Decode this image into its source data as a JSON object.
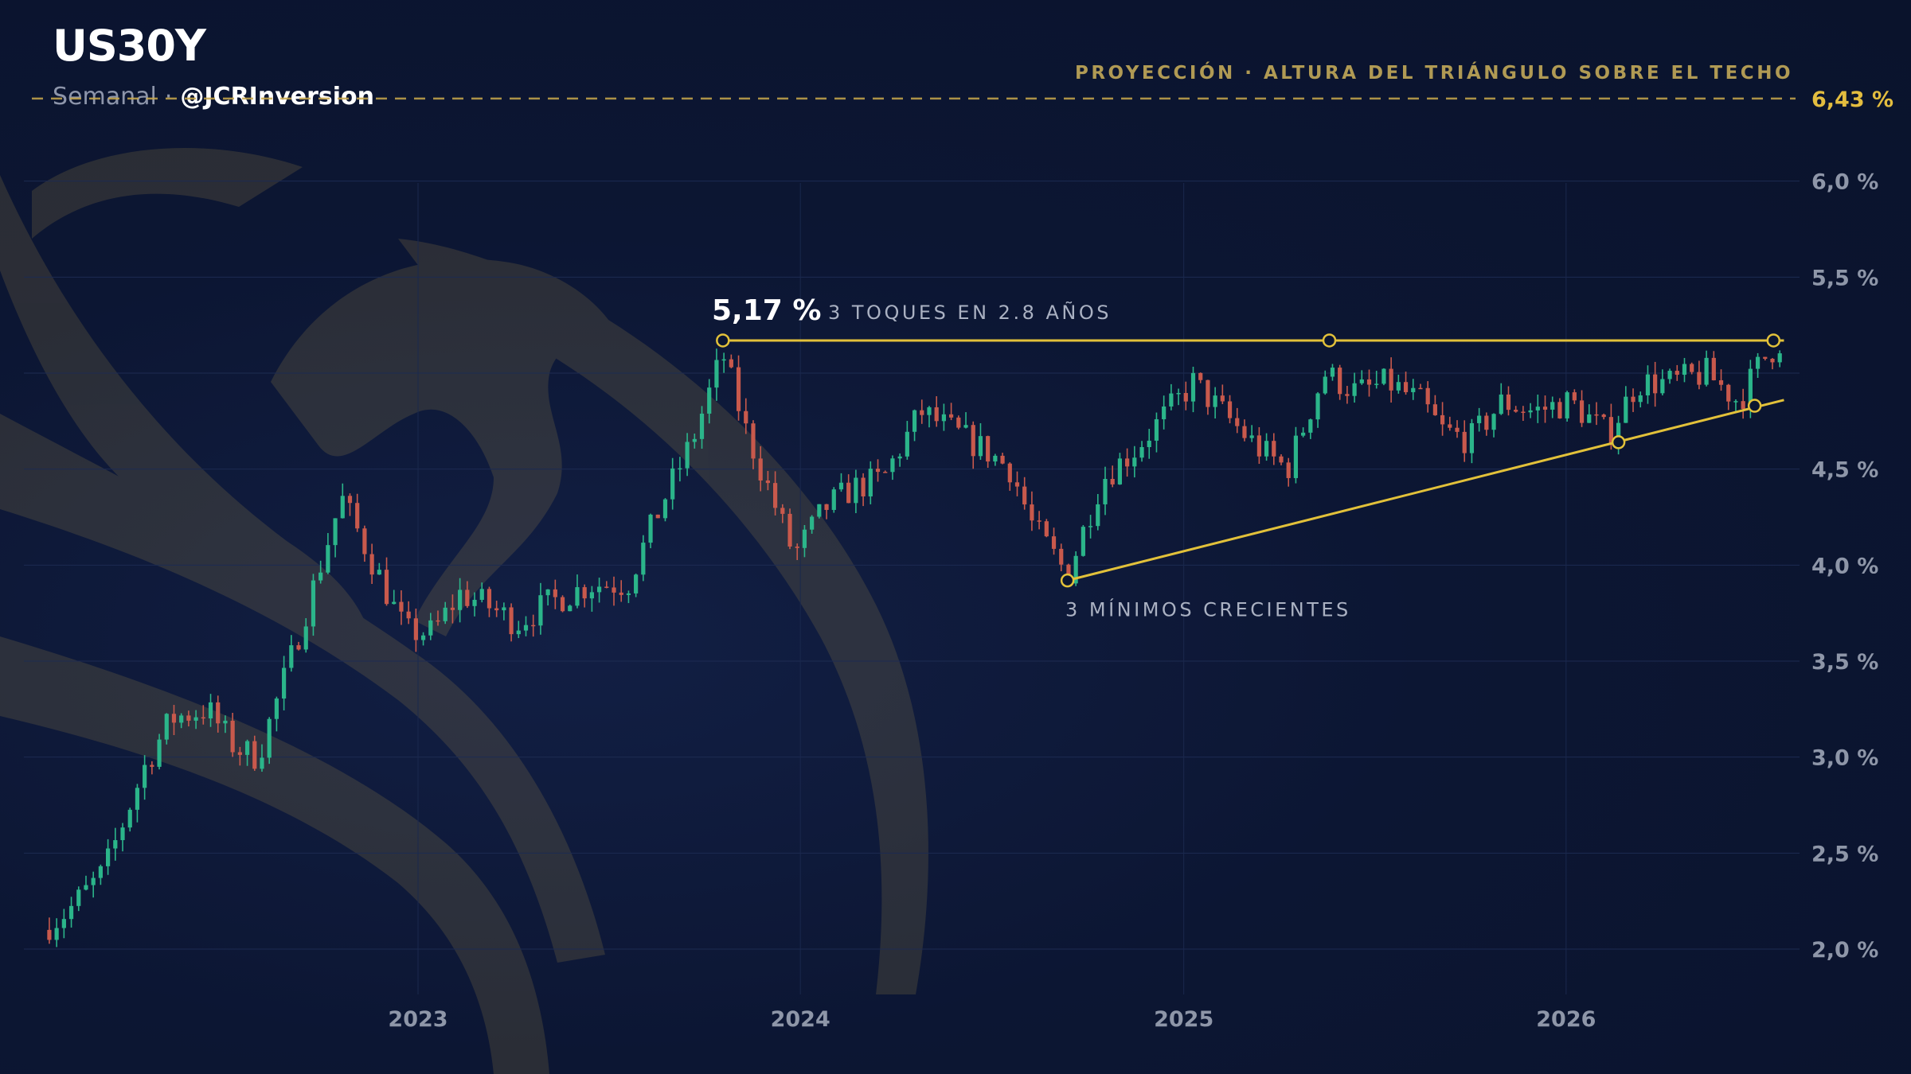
{
  "header": {
    "title": "US30Y",
    "timeframe": "Semanal",
    "separator": "·",
    "handle": "@JCRInversion"
  },
  "colors": {
    "background": "#0b1530",
    "up_candle": "#2bb58a",
    "down_candle": "#c8594c",
    "trendline": "#e2c13a",
    "projection": "#c9a84c",
    "watermark": "#c9a84c"
  },
  "watermark_icon": "phoenix-logo",
  "chart_data": {
    "type": "candlestick",
    "symbol": "US30Y",
    "timeframe": "weekly",
    "x_ticks": [
      "2023",
      "2024",
      "2025",
      "2026"
    ],
    "y_ticks": [
      "2,0 %",
      "2,5 %",
      "3,0 %",
      "3,5 %",
      "4,0 %",
      "4,5 %",
      "5,5 %",
      "6,0 %"
    ],
    "ylim": [
      1.95,
      6.55
    ],
    "x_range": [
      "2022-01-07",
      "2026-08-01"
    ],
    "grid": true,
    "series_close_anchors": [
      [
        "2022-01-07",
        2.1
      ],
      [
        "2022-02-01",
        2.2
      ],
      [
        "2022-03-07",
        2.4
      ],
      [
        "2022-04-15",
        2.95
      ],
      [
        "2022-05-10",
        3.2
      ],
      [
        "2022-06-14",
        3.25
      ],
      [
        "2022-07-10",
        3.05
      ],
      [
        "2022-08-01",
        3.0
      ],
      [
        "2022-09-01",
        3.5
      ],
      [
        "2022-10-20",
        4.35
      ],
      [
        "2022-11-20",
        4.0
      ],
      [
        "2022-12-20",
        3.65
      ],
      [
        "2023-01-15",
        3.65
      ],
      [
        "2023-02-10",
        3.85
      ],
      [
        "2023-03-05",
        3.8
      ],
      [
        "2023-04-05",
        3.7
      ],
      [
        "2023-05-05",
        3.8
      ],
      [
        "2023-06-15",
        3.9
      ],
      [
        "2023-07-20",
        3.9
      ],
      [
        "2023-08-20",
        4.3
      ],
      [
        "2023-09-20",
        4.65
      ],
      [
        "2023-10-19",
        5.1
      ],
      [
        "2023-11-10",
        4.7
      ],
      [
        "2023-12-05",
        4.35
      ],
      [
        "2023-12-26",
        4.05
      ],
      [
        "2024-01-25",
        4.3
      ],
      [
        "2024-02-20",
        4.4
      ],
      [
        "2024-03-20",
        4.45
      ],
      [
        "2024-04-25",
        4.8
      ],
      [
        "2024-05-25",
        4.7
      ],
      [
        "2024-06-25",
        4.6
      ],
      [
        "2024-07-20",
        4.5
      ],
      [
        "2024-08-10",
        4.2
      ],
      [
        "2024-09-12",
        3.95
      ],
      [
        "2024-10-15",
        4.45
      ],
      [
        "2024-11-15",
        4.6
      ],
      [
        "2025-01-10",
        4.95
      ],
      [
        "2025-02-15",
        4.75
      ],
      [
        "2025-03-15",
        4.6
      ],
      [
        "2025-04-10",
        4.5
      ],
      [
        "2025-05-15",
        5.0
      ],
      [
        "2025-06-15",
        4.9
      ],
      [
        "2025-07-15",
        4.95
      ],
      [
        "2025-08-15",
        4.85
      ],
      [
        "2025-09-05",
        4.7
      ],
      [
        "2025-10-01",
        4.65
      ],
      [
        "2025-11-01",
        4.85
      ],
      [
        "2025-12-01",
        4.8
      ],
      [
        "2026-01-05",
        4.85
      ],
      [
        "2026-02-10",
        4.68
      ],
      [
        "2026-03-10",
        4.95
      ],
      [
        "2026-04-10",
        4.95
      ],
      [
        "2026-05-15",
        5.0
      ],
      [
        "2026-06-15",
        4.85
      ],
      [
        "2026-07-05",
        5.05
      ],
      [
        "2026-07-25",
        5.17
      ]
    ],
    "resistance": {
      "value": 5.17,
      "start_date": "2023-10-19",
      "end_date": "2026-07-28",
      "touches": [
        "2023-10-19",
        "2025-05-20",
        "2026-07-18"
      ]
    },
    "support": {
      "start": [
        "2024-09-12",
        3.92
      ],
      "end": [
        "2026-07-28",
        4.86
      ],
      "touches": [
        [
          "2024-09-12",
          3.92
        ],
        [
          "2026-02-20",
          4.64
        ],
        [
          "2026-06-30",
          4.83
        ]
      ]
    },
    "projection": {
      "value": 6.43,
      "label": "PROYECCIÓN · ALTURA DEL TRIÁNGULO SOBRE EL TECHO",
      "value_label": "6,43 %"
    },
    "annotations": {
      "peak_value": "5,17 %",
      "touches": "3 TOQUES EN 2.8 AÑOS",
      "higher_lows": "3 MÍNIMOS CRECIENTES"
    }
  }
}
